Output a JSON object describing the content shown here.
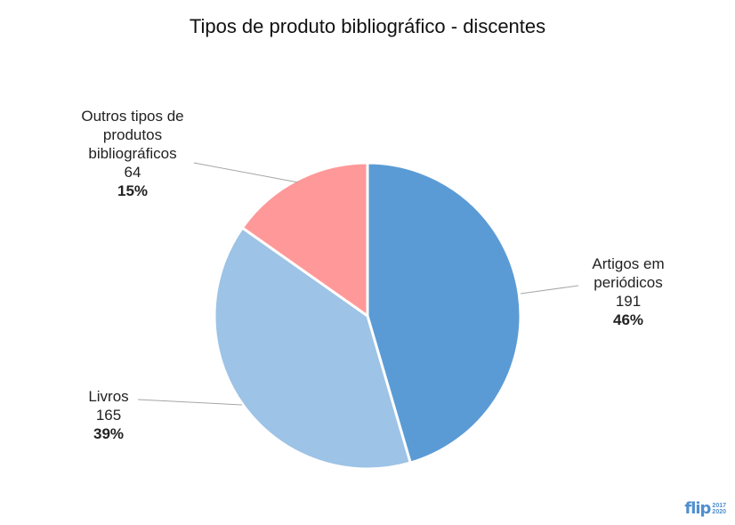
{
  "chart_data": {
    "type": "pie",
    "title": "Tipos de produto bibliográfico - discentes",
    "slices": [
      {
        "label_lines": [
          "Artigos em",
          "periódicos"
        ],
        "value": "191",
        "percent": "46%",
        "numeric": 191,
        "color": "#5b9bd5"
      },
      {
        "label_lines": [
          "Livros"
        ],
        "value": "165",
        "percent": "39%",
        "numeric": 165,
        "color": "#9dc3e6"
      },
      {
        "label_lines": [
          "Outros tipos de",
          "produtos",
          "bibliográficos"
        ],
        "value": "64",
        "percent": "15%",
        "numeric": 64,
        "color": "#ff9999"
      }
    ]
  },
  "logo": {
    "mark": "flip",
    "years_top": "2017",
    "years_bottom": "2020"
  }
}
